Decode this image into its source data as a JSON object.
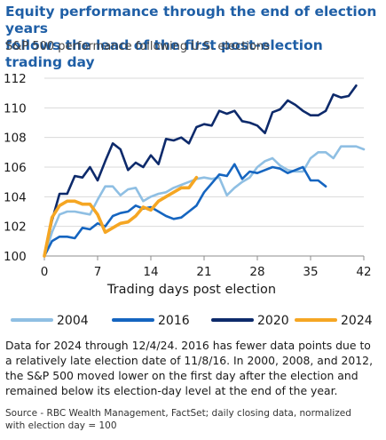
{
  "header": {
    "title_line1": "Equity performance through the end of election years",
    "title_line2": "follows the lead of the first post-election trading day",
    "subtitle": "S&P 500 performance following U.S. elections"
  },
  "footer": {
    "note_lines": [
      "Data for 2024 through 12/4/24. 2016 has fewer data points due to",
      "a relatively late election date of 11/8/16. In 2000, 2008, and 2012,",
      "the S&P 500 moved lower on the first day after the election and",
      "remained below its election-day level at the end of the year."
    ],
    "source_lines": [
      "Source - RBC Wealth Management, FactSet; daily closing data, normalized",
      "with election day = 100"
    ]
  },
  "chart_data": {
    "type": "line",
    "title": "Equity performance through the end of election years follows the lead of the first post-election trading day",
    "subtitle": "S&P 500 performance following U.S. elections",
    "xlabel": "Trading days post election",
    "ylabel": "",
    "xlim": [
      0,
      42
    ],
    "ylim": [
      100,
      112
    ],
    "xticks": [
      0,
      7,
      14,
      21,
      28,
      35,
      42
    ],
    "yticks": [
      100,
      102,
      104,
      106,
      108,
      110,
      112
    ],
    "grid": "horizontal",
    "legend": "bottom",
    "series": [
      {
        "name": "2004",
        "color": "#8fbfe3",
        "values": [
          100,
          101.6,
          102.8,
          103.0,
          103.0,
          102.9,
          102.8,
          103.8,
          104.7,
          104.7,
          104.1,
          104.5,
          104.6,
          103.7,
          104.0,
          104.2,
          104.3,
          104.6,
          104.8,
          105.0,
          105.2,
          105.3,
          105.2,
          105.3,
          104.1,
          104.6,
          105.0,
          105.3,
          106.0,
          106.4,
          106.6,
          106.1,
          105.8,
          105.7,
          105.7,
          106.6,
          107.0,
          107.0,
          106.6,
          107.4,
          107.4,
          107.4,
          107.2
        ]
      },
      {
        "name": "2016",
        "color": "#1565c0",
        "values": [
          100,
          101.0,
          101.3,
          101.3,
          101.2,
          101.9,
          101.8,
          102.2,
          102.0,
          102.7,
          102.9,
          103.0,
          103.4,
          103.2,
          103.3,
          103.0,
          102.7,
          102.5,
          102.6,
          103.0,
          103.4,
          104.3,
          104.9,
          105.5,
          105.4,
          106.2,
          105.2,
          105.7,
          105.6,
          105.8,
          106.0,
          105.9,
          105.6,
          105.8,
          106.0,
          105.1,
          105.1,
          104.7
        ]
      },
      {
        "name": "2020",
        "color": "#0d2a6b",
        "values": [
          100,
          102.4,
          104.2,
          104.2,
          105.4,
          105.3,
          106.0,
          105.1,
          106.4,
          107.6,
          107.2,
          105.8,
          106.3,
          106.0,
          106.8,
          106.2,
          107.9,
          107.8,
          108.0,
          107.6,
          108.7,
          108.9,
          108.8,
          109.8,
          109.6,
          109.8,
          109.1,
          109.0,
          108.8,
          108.3,
          109.7,
          109.9,
          110.5,
          110.2,
          109.8,
          109.5,
          109.5,
          109.8,
          110.9,
          110.7,
          110.8,
          111.5
        ]
      },
      {
        "name": "2024",
        "color": "#f5a623",
        "values": [
          100,
          102.6,
          103.4,
          103.7,
          103.7,
          103.5,
          103.5,
          102.8,
          101.6,
          101.9,
          102.2,
          102.3,
          102.7,
          103.3,
          103.1,
          103.7,
          104.0,
          104.3,
          104.6,
          104.6,
          105.3
        ]
      }
    ]
  }
}
